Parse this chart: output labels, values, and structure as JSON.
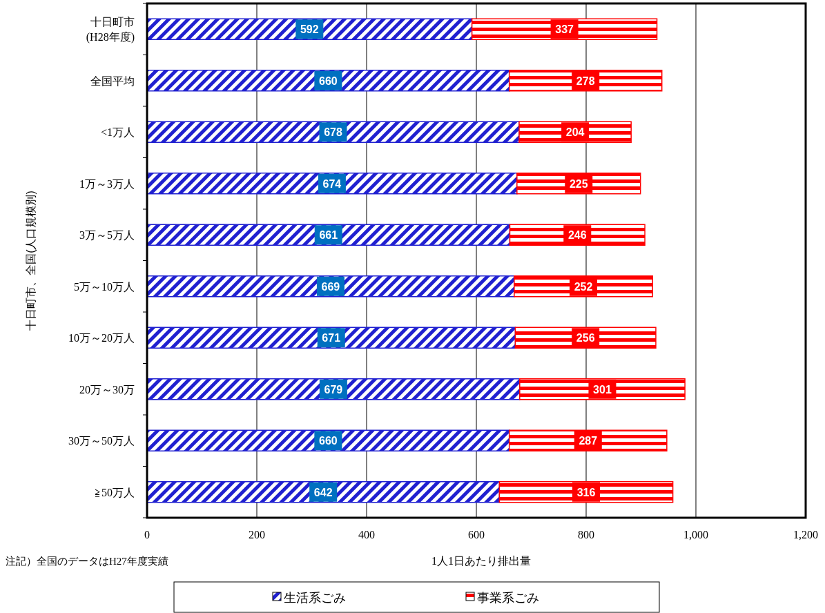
{
  "chart_data": {
    "type": "bar",
    "orientation": "horizontal",
    "stacked": true,
    "categories": [
      "十日町市\n(H28年度)",
      "全国平均",
      "<1万人",
      "1万～3万人",
      "3万～5万人",
      "5万～10万人",
      "10万～20万人",
      "20万～30万",
      "30万～50万人",
      "≧50万人"
    ],
    "series": [
      {
        "name": "生活系ごみ",
        "color": "#2020d0",
        "values": [
          592,
          660,
          678,
          674,
          661,
          669,
          671,
          679,
          660,
          642
        ]
      },
      {
        "name": "事業系ごみ",
        "color": "#ff0000",
        "values": [
          337,
          278,
          204,
          225,
          246,
          252,
          256,
          301,
          287,
          316
        ]
      }
    ],
    "xlim": [
      0,
      1200
    ],
    "xticks": [
      0,
      200,
      400,
      600,
      800,
      {
        "value": 1000,
        "label": "1,000"
      },
      {
        "value": 1200,
        "label": "1,200"
      }
    ],
    "xlabel": "1人1日あたり排出量",
    "ylabel": "十日町市、全国(人口規模別)",
    "annotations": [
      "注記）全国のデータはH27年度実績"
    ],
    "grid": "x",
    "legend": "bottom",
    "data_labels": true
  }
}
